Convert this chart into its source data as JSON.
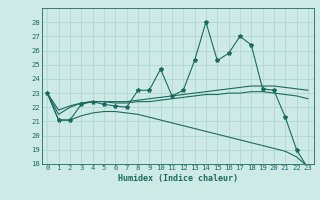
{
  "title": "",
  "xlabel": "Humidex (Indice chaleur)",
  "background_color": "#ceeae7",
  "grid_color": "#aed8d4",
  "line_color": "#1a6b5e",
  "x_values": [
    0,
    1,
    2,
    3,
    4,
    5,
    6,
    7,
    8,
    9,
    10,
    11,
    12,
    13,
    14,
    15,
    16,
    17,
    18,
    19,
    20,
    21,
    22,
    23
  ],
  "line1": [
    23.0,
    21.1,
    21.1,
    22.2,
    22.4,
    22.2,
    22.1,
    22.0,
    23.2,
    23.2,
    24.7,
    22.8,
    23.2,
    25.3,
    28.0,
    25.3,
    25.8,
    27.0,
    26.4,
    23.3,
    23.2,
    21.3,
    19.0,
    17.7
  ],
  "line2": [
    23.0,
    21.5,
    22.0,
    22.3,
    22.4,
    22.4,
    22.4,
    22.4,
    22.5,
    22.6,
    22.7,
    22.8,
    22.9,
    23.0,
    23.1,
    23.2,
    23.3,
    23.4,
    23.5,
    23.5,
    23.5,
    23.4,
    23.3,
    23.2
  ],
  "line3": [
    23.0,
    21.8,
    22.1,
    22.3,
    22.4,
    22.4,
    22.3,
    22.3,
    22.4,
    22.4,
    22.5,
    22.6,
    22.7,
    22.8,
    22.9,
    22.9,
    23.0,
    23.0,
    23.1,
    23.1,
    23.0,
    22.9,
    22.8,
    22.6
  ],
  "line4": [
    23.0,
    21.1,
    21.1,
    21.4,
    21.6,
    21.7,
    21.7,
    21.6,
    21.5,
    21.3,
    21.1,
    20.9,
    20.7,
    20.5,
    20.3,
    20.1,
    19.9,
    19.7,
    19.5,
    19.3,
    19.1,
    18.9,
    18.5,
    17.8
  ],
  "ylim": [
    18,
    29
  ],
  "yticks": [
    18,
    19,
    20,
    21,
    22,
    23,
    24,
    25,
    26,
    27,
    28
  ],
  "xticks": [
    0,
    1,
    2,
    3,
    4,
    5,
    6,
    7,
    8,
    9,
    10,
    11,
    12,
    13,
    14,
    15,
    16,
    17,
    18,
    19,
    20,
    21,
    22,
    23
  ]
}
